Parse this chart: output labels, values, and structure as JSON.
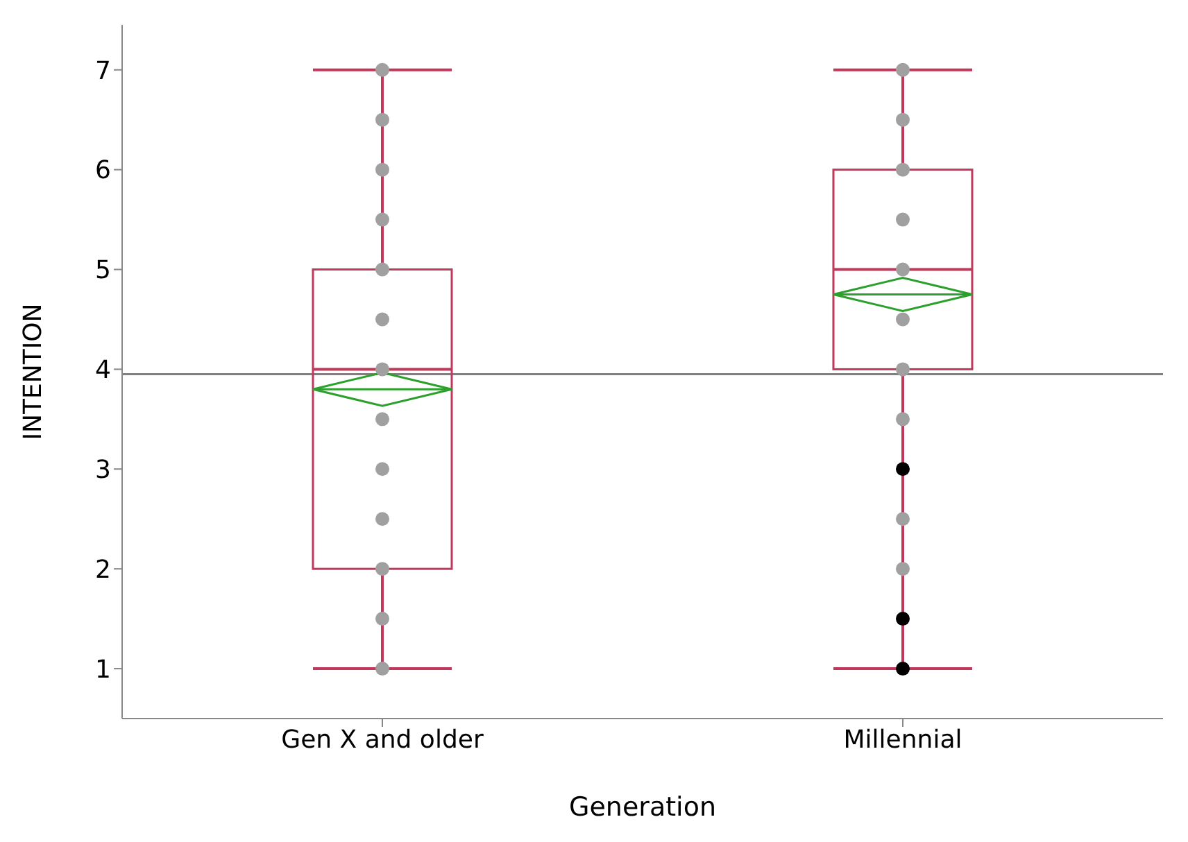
{
  "chart_data": {
    "type": "box",
    "xlabel": "Generation",
    "ylabel": "INTENTION",
    "categories": [
      "Gen X and older",
      "Millennial"
    ],
    "ylim": [
      0.5,
      7.45
    ],
    "yticks": [
      1,
      2,
      3,
      4,
      5,
      6,
      7
    ],
    "grid": false,
    "legend": false,
    "series": [
      {
        "type": "box",
        "color": "#c0395b",
        "boxes": [
          {
            "low": 1,
            "q1": 2,
            "median": 4,
            "q3": 5,
            "high": 7,
            "mean": 3.8
          },
          {
            "low": 1,
            "q1": 4,
            "median": 5,
            "q3": 6,
            "high": 7,
            "mean": 4.75
          }
        ]
      },
      {
        "type": "scatter",
        "x": [
          "Gen X and older",
          "Gen X and older",
          "Gen X and older",
          "Gen X and older",
          "Gen X and older",
          "Gen X and older",
          "Gen X and older",
          "Gen X and older",
          "Gen X and older",
          "Gen X and older",
          "Gen X and older",
          "Gen X and older",
          "Gen X and older",
          "Millennial",
          "Millennial",
          "Millennial",
          "Millennial",
          "Millennial",
          "Millennial",
          "Millennial",
          "Millennial",
          "Millennial",
          "Millennial",
          "Millennial",
          "Millennial",
          "Millennial"
        ],
        "values": [
          1,
          1.5,
          2,
          2.5,
          3,
          3.5,
          4,
          4.5,
          5,
          5.5,
          6,
          6.5,
          7,
          1,
          1.5,
          2,
          2.5,
          3,
          3.5,
          4,
          4.5,
          5,
          5.5,
          6,
          6.5,
          7
        ],
        "colors": [
          "#a0a0a0",
          "#a0a0a0",
          "#a0a0a0",
          "#a0a0a0",
          "#a0a0a0",
          "#a0a0a0",
          "#a0a0a0",
          "#a0a0a0",
          "#a0a0a0",
          "#a0a0a0",
          "#a0a0a0",
          "#a0a0a0",
          "#a0a0a0",
          "#000000",
          "#000000",
          "#a0a0a0",
          "#a0a0a0",
          "#000000",
          "#a0a0a0",
          "#a0a0a0",
          "#a0a0a0",
          "#a0a0a0",
          "#a0a0a0",
          "#a0a0a0",
          "#a0a0a0",
          "#a0a0a0"
        ]
      }
    ],
    "ref_lines": [
      {
        "axis": "y",
        "value": 3.95,
        "color": "#808080"
      }
    ]
  }
}
